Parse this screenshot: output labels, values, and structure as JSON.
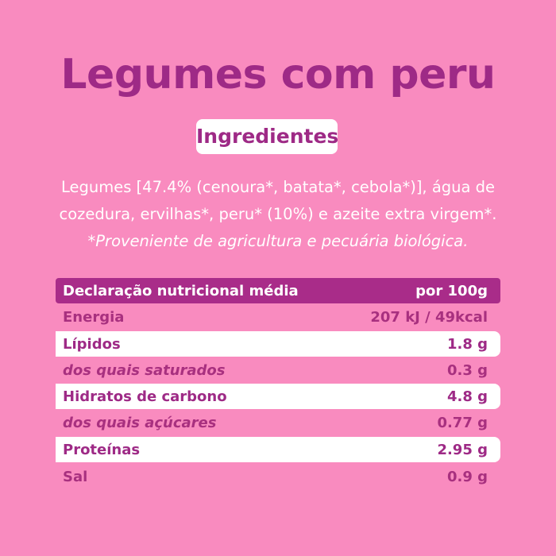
{
  "title": "Legumes com peru",
  "ingredients_label": "Ingredientes",
  "ingredients": {
    "line1": "Legumes [47.4% (cenoura*, batata*, cebola*)], água de",
    "line2": "cozedura, ervilhas*, peru* (10%) e azeite extra virgem*.",
    "note": "*Proveniente de agricultura e pecuária biológica."
  },
  "nutrition": {
    "header_label": "Declaração nutricional média",
    "header_value": "por 100g",
    "rows": [
      {
        "label": "Energia",
        "value": "207 kJ / 49kcal"
      },
      {
        "label": "Lípidos",
        "value": "1.8 g"
      },
      {
        "label": "dos quais saturados",
        "value": "0.3 g"
      },
      {
        "label": "Hidratos de carbono",
        "value": "4.8 g"
      },
      {
        "label": "dos quais açúcares",
        "value": "0.77 g"
      },
      {
        "label": "Proteínas",
        "value": "2.95 g"
      },
      {
        "label": "Sal",
        "value": "0.9 g"
      }
    ]
  },
  "colors": {
    "background": "#f98bbf",
    "accent": "#9e2a86",
    "header_bg": "#a92c89",
    "highlight_row": "#ffffff"
  }
}
